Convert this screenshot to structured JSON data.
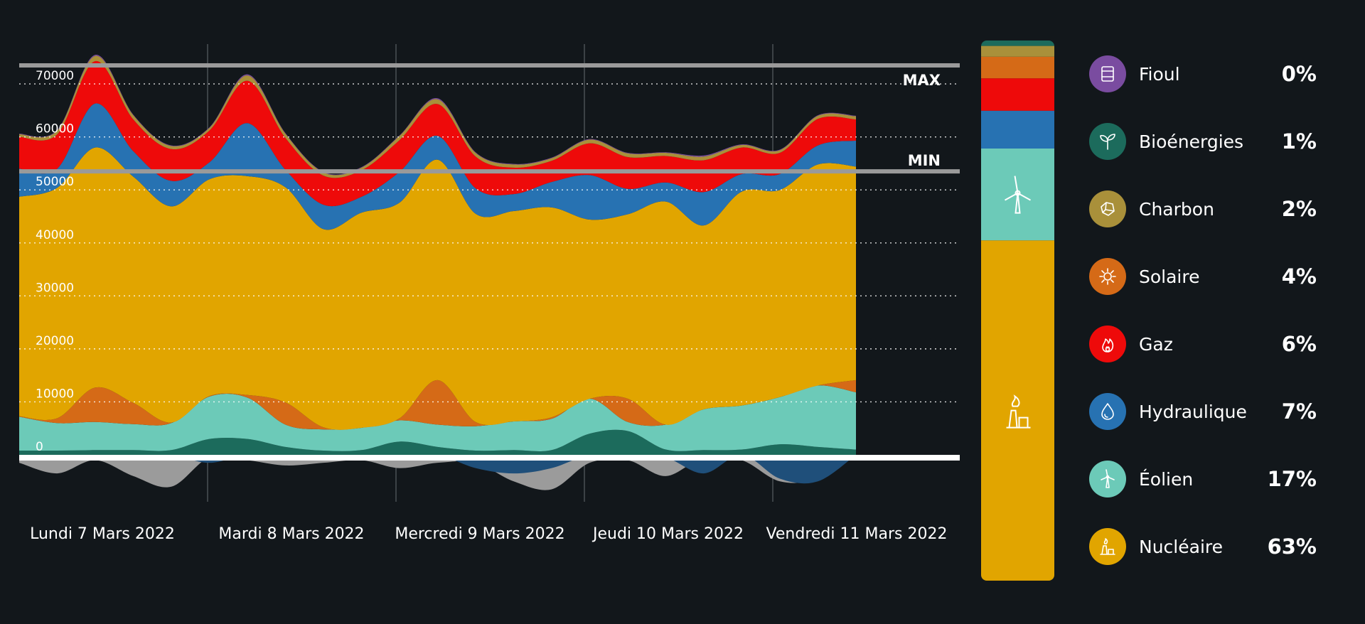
{
  "chart_data": {
    "type": "area",
    "unit": "",
    "x_labels": [
      "Lundi 7 Mars 2022",
      "Mardi 8 Mars 2022",
      "Mercredi 9 Mars 2022",
      "Jeudi 10 Mars 2022",
      "Vendredi 11 Mars 2022"
    ],
    "y_ticks": [
      0,
      10000,
      20000,
      30000,
      40000,
      50000,
      60000,
      70000
    ],
    "ylim": [
      -9000,
      78000
    ],
    "grid": true,
    "reference_lines": [
      {
        "label": "MAX",
        "value": 73500
      },
      {
        "label": "MIN",
        "value": 53500
      }
    ],
    "sample_labels": [
      "Lundi 7 Mars 2022",
      "",
      "",
      "",
      "",
      "Mardi 8 Mars 2022",
      "",
      "",
      "",
      "",
      "Mercredi 9 Mars 2022",
      "",
      "",
      "",
      "",
      "Jeudi 10 Mars 2022",
      "",
      "",
      "",
      "",
      "Vendredi 11 Mars 2022",
      "",
      ""
    ],
    "series": [
      {
        "name": "Bioénergies",
        "color": "#1c6b5c",
        "values": [
          800,
          800,
          900,
          900,
          900,
          3000,
          3000,
          1500,
          800,
          900,
          2500,
          1500,
          800,
          900,
          900,
          4000,
          4500,
          1000,
          900,
          1000,
          2000,
          1500,
          1000
        ]
      },
      {
        "name": "Éolien",
        "color": "#6ccab8",
        "values": [
          6400,
          5200,
          5300,
          4900,
          5100,
          8000,
          7800,
          4200,
          4000,
          4200,
          4000,
          4200,
          4600,
          5400,
          5900,
          6600,
          1700,
          4700,
          7700,
          8300,
          8900,
          11600,
          10800
        ]
      },
      {
        "name": "Solaire",
        "color": "#d56a17",
        "values": [
          100,
          900,
          6500,
          4000,
          100,
          100,
          500,
          4200,
          400,
          0,
          400,
          8400,
          800,
          0,
          300,
          0,
          4400,
          0,
          0,
          0,
          0,
          0,
          2300
        ]
      },
      {
        "name": "Nucléaire",
        "color": "#e1a500",
        "values": [
          41400,
          43500,
          45300,
          42700,
          40800,
          40900,
          41300,
          40600,
          37400,
          40600,
          40700,
          41600,
          39300,
          39700,
          39600,
          33800,
          34800,
          42100,
          34700,
          40400,
          39100,
          41700,
          40300
        ]
      },
      {
        "name": "Hydraulique",
        "color": "#2772b2",
        "values": [
          5300,
          3600,
          8300,
          4800,
          4800,
          3200,
          10000,
          3300,
          4600,
          3000,
          5800,
          4500,
          4800,
          3200,
          4800,
          8400,
          4800,
          3600,
          6300,
          3300,
          3000,
          3600,
          4900
        ]
      },
      {
        "name": "Gaz",
        "color": "#ee0a0a",
        "values": [
          6000,
          6500,
          8000,
          6000,
          6000,
          6000,
          8000,
          6000,
          5500,
          5000,
          6000,
          6000,
          6000,
          5000,
          4000,
          6000,
          6000,
          5000,
          6000,
          5000,
          4000,
          5000,
          4000
        ]
      },
      {
        "name": "Charbon",
        "color": "#a9903a",
        "values": [
          500,
          700,
          1000,
          800,
          600,
          500,
          1000,
          800,
          600,
          500,
          800,
          900,
          700,
          600,
          500,
          700,
          700,
          600,
          700,
          500,
          500,
          600,
          600
        ]
      },
      {
        "name": "Fioul",
        "color": "#7a4ca0",
        "values": [
          100,
          100,
          200,
          100,
          100,
          100,
          200,
          100,
          100,
          100,
          100,
          200,
          100,
          100,
          100,
          100,
          100,
          100,
          200,
          100,
          100,
          100,
          100
        ]
      }
    ],
    "net_negative": {
      "color": "#9b9b9b",
      "values": [
        -1500,
        -3500,
        -1000,
        -4000,
        -6000,
        -500,
        -1000,
        -2000,
        -1500,
        -1000,
        -2500,
        -1500,
        -1500,
        -5000,
        -6500,
        -1500,
        -1000,
        -4000,
        -500,
        -1000,
        -5000,
        -4500,
        0
      ]
    },
    "net_negative_2": {
      "color": "#1f4f7a",
      "values": [
        0,
        0,
        0,
        0,
        0,
        -1500,
        0,
        -500,
        0,
        -1000,
        0,
        0,
        -2500,
        -3500,
        -2500,
        0,
        0,
        -500,
        -3500,
        0,
        -4500,
        -5000,
        0
      ]
    },
    "mix_bar": {
      "segments": [
        {
          "name": "Nucléaire",
          "color": "#e1a500",
          "percent": 63
        },
        {
          "name": "Éolien",
          "color": "#6ccab8",
          "percent": 17
        },
        {
          "name": "Hydraulique",
          "color": "#2772b2",
          "percent": 7
        },
        {
          "name": "Gaz",
          "color": "#ee0a0a",
          "percent": 6
        },
        {
          "name": "Solaire",
          "color": "#d56a17",
          "percent": 4
        },
        {
          "name": "Charbon",
          "color": "#a9903a",
          "percent": 2
        },
        {
          "name": "Bioénergies",
          "color": "#1c6b5c",
          "percent": 1
        },
        {
          "name": "Fioul",
          "color": "#7a4ca0",
          "percent": 0
        }
      ]
    }
  },
  "legend": [
    {
      "name": "Fioul",
      "value": "0%",
      "color": "#7a4ca0",
      "icon": "barrel-icon"
    },
    {
      "name": "Bioénergies",
      "value": "1%",
      "color": "#1c6b5c",
      "icon": "sprout-icon"
    },
    {
      "name": "Charbon",
      "value": "2%",
      "color": "#a9903a",
      "icon": "coal-rock-icon"
    },
    {
      "name": "Solaire",
      "value": "4%",
      "color": "#d56a17",
      "icon": "sun-icon"
    },
    {
      "name": "Gaz",
      "value": "6%",
      "color": "#ee0a0a",
      "icon": "flame-icon"
    },
    {
      "name": "Hydraulique",
      "value": "7%",
      "color": "#2772b2",
      "icon": "water-drop-icon"
    },
    {
      "name": "Éolien",
      "value": "17%",
      "color": "#6ccab8",
      "icon": "wind-turbine-icon"
    },
    {
      "name": "Nucléaire",
      "value": "63%",
      "color": "#e1a500",
      "icon": "nuclear-plant-icon"
    }
  ]
}
